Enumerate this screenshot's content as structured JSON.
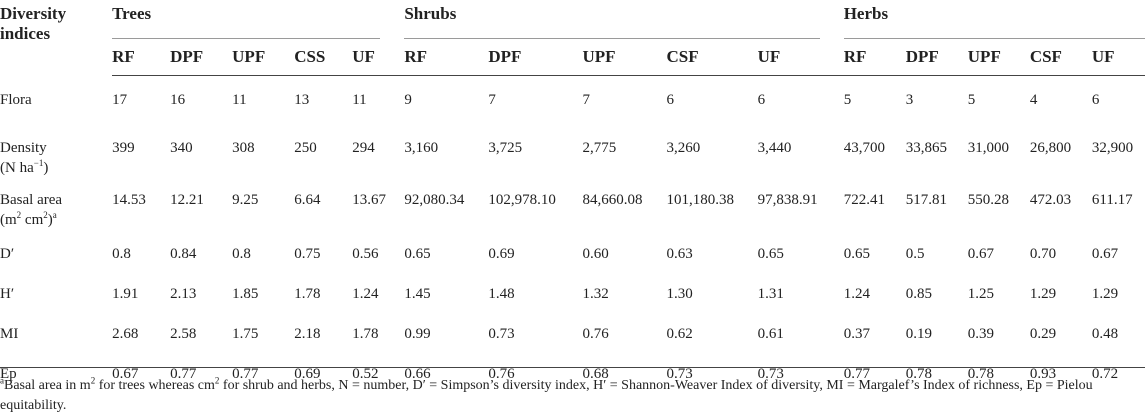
{
  "header": {
    "label_line1": "Diversity",
    "label_line2": "indices",
    "groups": [
      "Trees",
      "Shrubs",
      "Herbs"
    ],
    "trees_cols": [
      "RF",
      "DPF",
      "UPF",
      "CSS",
      "UF"
    ],
    "shrubs_cols": [
      "RF",
      "DPF",
      "UPF",
      "CSF",
      "UF"
    ],
    "herbs_cols": [
      "RF",
      "DPF",
      "UPF",
      "CSF",
      "UF"
    ]
  },
  "rows": [
    {
      "label": "Flora",
      "label2": "",
      "values": [
        "17",
        "16",
        "11",
        "13",
        "11",
        "9",
        "7",
        "7",
        "6",
        "6",
        "5",
        "3",
        "5",
        "4",
        "6"
      ]
    },
    {
      "label": "Density",
      "label2": "(N ha",
      "label2_sup": "−1",
      "label2_end": ")",
      "values": [
        "399",
        "340",
        "308",
        "250",
        "294",
        "3,160",
        "3,725",
        "2,775",
        "3,260",
        "3,440",
        "43,700",
        "33,865",
        "31,000",
        "26,800",
        "32,900"
      ]
    },
    {
      "label": "Basal area",
      "label2": "(m",
      "label2_sup": "2",
      "label2_mid": " cm",
      "label2_sup2": "2",
      "label2_end": ")",
      "label2_sup3": "a",
      "values": [
        "14.53",
        "12.21",
        "9.25",
        "6.64",
        "13.67",
        "92,080.34",
        "102,978.10",
        "84,660.08",
        "101,180.38",
        "97,838.91",
        "722.41",
        "517.81",
        "550.28",
        "472.03",
        "611.17"
      ]
    },
    {
      "label": "D′",
      "label2": "",
      "values": [
        "0.8",
        "0.84",
        "0.8",
        "0.75",
        "0.56",
        "0.65",
        "0.69",
        "0.60",
        "0.63",
        "0.65",
        "0.65",
        "0.5",
        "0.67",
        "0.70",
        "0.67"
      ]
    },
    {
      "label": "H′",
      "label2": "",
      "values": [
        "1.91",
        "2.13",
        "1.85",
        "1.78",
        "1.24",
        "1.45",
        "1.48",
        "1.32",
        "1.30",
        "1.31",
        "1.24",
        "0.85",
        "1.25",
        "1.29",
        "1.29"
      ]
    },
    {
      "label": "MI",
      "label2": "",
      "values": [
        "2.68",
        "2.58",
        "1.75",
        "2.18",
        "1.78",
        "0.99",
        "0.73",
        "0.76",
        "0.62",
        "0.61",
        "0.37",
        "0.19",
        "0.39",
        "0.29",
        "0.48"
      ]
    },
    {
      "label": "Ep",
      "label2": "",
      "values": [
        "0.67",
        "0.77",
        "0.77",
        "0.69",
        "0.52",
        "0.66",
        "0.76",
        "0.68",
        "0.73",
        "0.73",
        "0.77",
        "0.78",
        "0.78",
        "0.93",
        "0.72"
      ]
    }
  ],
  "footnote": {
    "marker": "a",
    "text": "Basal area in m",
    "sup1": "2",
    "text2": " for trees whereas cm",
    "sup2": "2",
    "text3": " for shrub and herbs, N = number, D′ = Simpson’s diversity index, H′ = Shannon-Weaver Index of diversity, MI = Margalef’s Index of richness, Ep = Pielou equitability."
  }
}
